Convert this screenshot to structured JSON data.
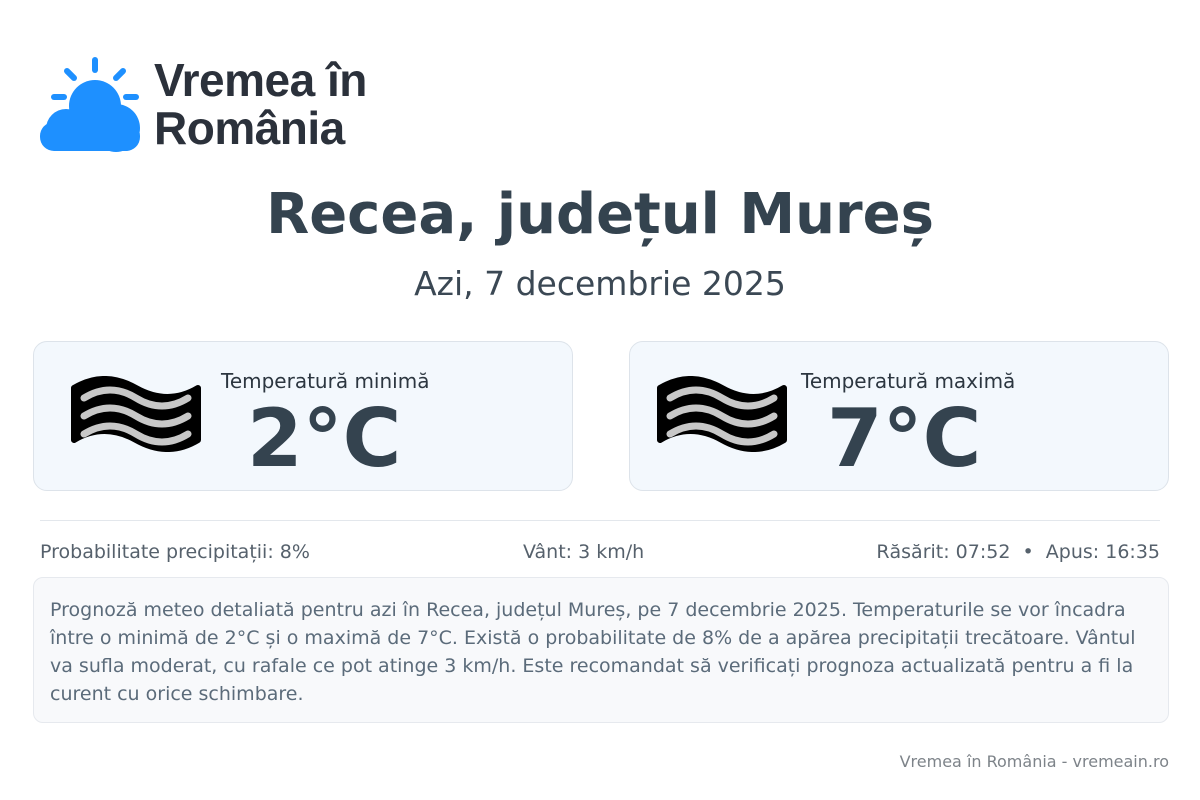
{
  "brand": {
    "name": "Vremea în România",
    "logo_icon": "sun-cloud-icon",
    "color": "#1e90ff"
  },
  "header": {
    "title": "Recea, județul Mureș",
    "subtitle": "Azi, 7 decembrie 2025"
  },
  "cards": [
    {
      "label": "Temperatură minimă",
      "value": "2°C",
      "icon": "fog-icon"
    },
    {
      "label": "Temperatură maximă",
      "value": "7°C",
      "icon": "fog-icon"
    }
  ],
  "stats": {
    "precip": "Probabilitate precipitații: 8%",
    "wind": "Vânt: 3 km/h",
    "sun": "Răsărit: 07:52  •  Apus: 16:35"
  },
  "description": "Prognoză meteo detaliată pentru azi în Recea, județul Mureș, pe 7 decembrie 2025. Temperaturile se vor încadra între o minimă de 2°C și o maximă de 7°C. Există o probabilitate de 8% de a apărea precipitații trecătoare. Vântul va sufla moderat, cu rafale ce pot atinge 3 km/h. Este recomandat să verificați prognoza actualizată pentru a fi la curent cu orice schimbare.",
  "footer": "Vremea în România - vremeain.ro"
}
